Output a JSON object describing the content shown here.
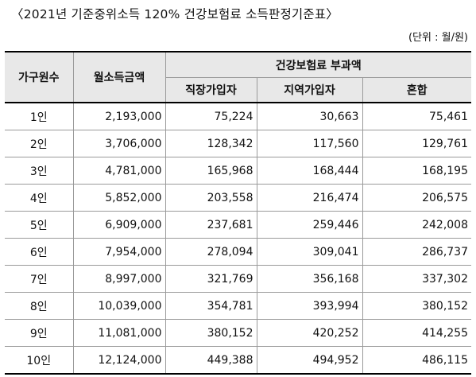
{
  "title": "〈2021년 기준중위소득 120% 건강보험료 소득판정기준표〉",
  "unit": "(단위 : 월/원)",
  "headers": {
    "household": "가구원수",
    "income": "월소득금액",
    "premium_group": "건강보험료 부과액",
    "employee": "직장가입자",
    "regional": "지역가입자",
    "mixed": "혼합"
  },
  "rows": [
    {
      "persons": "1인",
      "income": "2,193,000",
      "employee": "75,224",
      "regional": "30,663",
      "mixed": "75,461"
    },
    {
      "persons": "2인",
      "income": "3,706,000",
      "employee": "128,342",
      "regional": "117,560",
      "mixed": "129,761"
    },
    {
      "persons": "3인",
      "income": "4,781,000",
      "employee": "165,968",
      "regional": "168,444",
      "mixed": "168,195"
    },
    {
      "persons": "4인",
      "income": "5,852,000",
      "employee": "203,558",
      "regional": "216,474",
      "mixed": "206,575"
    },
    {
      "persons": "5인",
      "income": "6,909,000",
      "employee": "237,681",
      "regional": "259,446",
      "mixed": "242,008"
    },
    {
      "persons": "6인",
      "income": "7,954,000",
      "employee": "278,094",
      "regional": "309,041",
      "mixed": "286,737"
    },
    {
      "persons": "7인",
      "income": "8,997,000",
      "employee": "321,769",
      "regional": "356,168",
      "mixed": "337,302"
    },
    {
      "persons": "8인",
      "income": "10,039,000",
      "employee": "354,781",
      "regional": "393,994",
      "mixed": "380,152"
    },
    {
      "persons": "9인",
      "income": "11,081,000",
      "employee": "380,152",
      "regional": "420,252",
      "mixed": "414,255"
    },
    {
      "persons": "10인",
      "income": "12,124,000",
      "employee": "449,388",
      "regional": "494,952",
      "mixed": "486,115"
    }
  ]
}
